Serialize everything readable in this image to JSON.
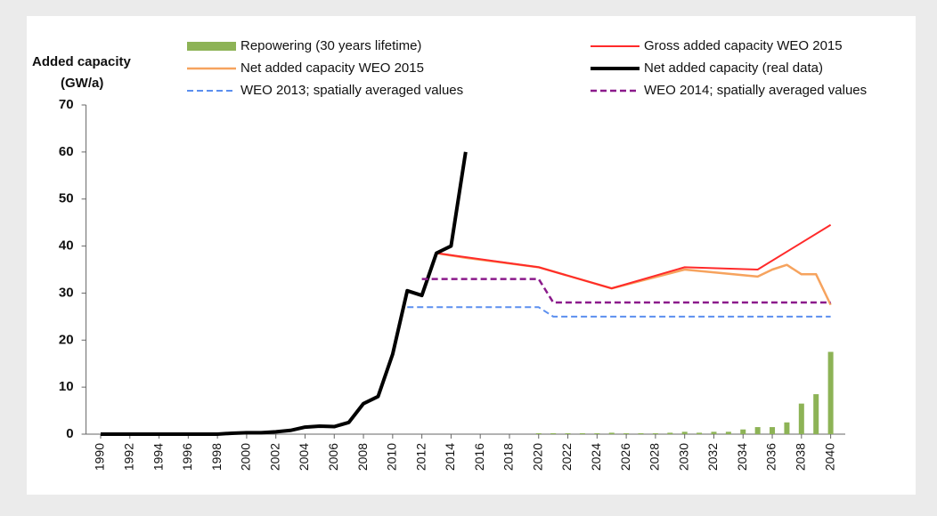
{
  "chart_data": {
    "type": "line",
    "ylabel": [
      "Added capacity",
      "(GW/a)"
    ],
    "xlim": [
      1989,
      2041
    ],
    "xticks": [
      1990,
      1992,
      1994,
      1996,
      1998,
      2000,
      2002,
      2004,
      2006,
      2008,
      2010,
      2012,
      2014,
      2016,
      2018,
      2020,
      2022,
      2024,
      2026,
      2028,
      2030,
      2032,
      2034,
      2036,
      2038,
      2040
    ],
    "ylim": [
      0,
      70
    ],
    "yticks": [
      0,
      10,
      20,
      30,
      40,
      50,
      60,
      70
    ],
    "legend": "top",
    "series": [
      {
        "name": "Repowering (30 years lifetime)",
        "type": "bar",
        "color": "#8db356",
        "x": [
          2020,
          2021,
          2022,
          2023,
          2024,
          2025,
          2026,
          2027,
          2028,
          2029,
          2030,
          2031,
          2032,
          2033,
          2034,
          2035,
          2036,
          2037,
          2038,
          2039,
          2040
        ],
        "values": [
          0.2,
          0.2,
          0.2,
          0.2,
          0.2,
          0.3,
          0.2,
          0.2,
          0.2,
          0.3,
          0.5,
          0.3,
          0.5,
          0.5,
          1,
          1.5,
          1.5,
          2.5,
          6.5,
          8.5,
          17.5
        ]
      },
      {
        "name": "Gross added capacity WEO 2015",
        "type": "line",
        "color": "#ff2a2a",
        "width": 2,
        "x": [
          2013,
          2020,
          2025,
          2030,
          2035,
          2040
        ],
        "values": [
          38.5,
          35.5,
          31,
          35.5,
          35,
          44.5
        ]
      },
      {
        "name": "Net added capacity WEO 2015",
        "type": "line",
        "color": "#f6a35e",
        "width": 2.5,
        "x": [
          2013,
          2015,
          2020,
          2025,
          2030,
          2035,
          2036,
          2037,
          2038,
          2039,
          2040
        ],
        "values": [
          38.5,
          37.5,
          35.5,
          31,
          35,
          33.5,
          35,
          36,
          34,
          34,
          27.5
        ]
      },
      {
        "name": "Net added capacity  (real data)",
        "type": "line",
        "color": "#000000",
        "width": 4,
        "x": [
          1990,
          1991,
          1992,
          1993,
          1994,
          1995,
          1996,
          1997,
          1998,
          1999,
          2000,
          2001,
          2002,
          2003,
          2004,
          2005,
          2006,
          2007,
          2008,
          2009,
          2010,
          2011,
          2012,
          2013,
          2014,
          2015
        ],
        "values": [
          0,
          0,
          0,
          0,
          0,
          0,
          0,
          0,
          0,
          0.2,
          0.3,
          0.3,
          0.5,
          0.8,
          1.5,
          1.7,
          1.6,
          2.5,
          6.5,
          8,
          17,
          30.5,
          29.5,
          38.5,
          40,
          60
        ]
      },
      {
        "name": "WEO 2013; spatially averaged values",
        "type": "line",
        "color": "#5b8fef",
        "width": 2,
        "dash": true,
        "x": [
          2011,
          2020,
          2021,
          2040
        ],
        "values": [
          27,
          27,
          25,
          25
        ]
      },
      {
        "name": "WEO 2014; spatially averaged values",
        "type": "line",
        "color": "#8b1a8b",
        "width": 2.5,
        "dash": true,
        "x": [
          2012,
          2020,
          2021,
          2040
        ],
        "values": [
          33,
          33,
          28,
          28
        ]
      }
    ]
  }
}
